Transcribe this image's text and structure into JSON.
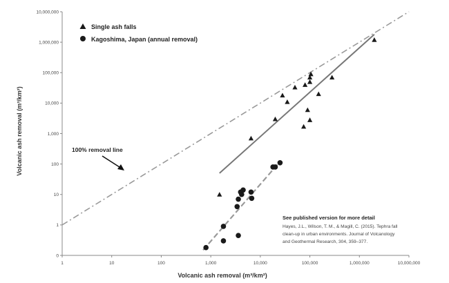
{
  "chart_data": {
    "type": "scatter",
    "title": "",
    "xlabel": "Volcanic ash removal (m³/km²)",
    "ylabel": "Volcanic ash removal (m³/km²)",
    "x_scale": "log",
    "y_scale": "log",
    "xlim": [
      1,
      10000000
    ],
    "ylim": [
      0.1,
      10000000
    ],
    "x_tick_values": [
      1,
      10,
      100,
      1000,
      10000,
      100000,
      1000000,
      10000000
    ],
    "x_tick_labels": [
      "1",
      "10",
      "100",
      "1,000",
      "10,000",
      "100,000",
      "1,000,000",
      "10,000,000"
    ],
    "y_tick_values": [
      0.1,
      1,
      10,
      100,
      1000,
      10000,
      100000,
      1000000,
      10000000
    ],
    "y_tick_labels": [
      "0",
      "1",
      "10",
      "100",
      "1,000",
      "10,000",
      "100,000",
      "1,000,000",
      "10,000,000"
    ],
    "grid": false,
    "legend_position": "top-left",
    "series": [
      {
        "name": "Single ash falls",
        "marker": "triangle",
        "color": "#1a1a1a",
        "points": [
          [
            1500,
            10
          ],
          [
            6500,
            700
          ],
          [
            20000,
            3000
          ],
          [
            28000,
            18000
          ],
          [
            35000,
            11000
          ],
          [
            50000,
            33000
          ],
          [
            75000,
            1700
          ],
          [
            80000,
            40000
          ],
          [
            90000,
            6000
          ],
          [
            100000,
            2800
          ],
          [
            100000,
            50000
          ],
          [
            100000,
            70000
          ],
          [
            105000,
            90000
          ],
          [
            150000,
            20000
          ],
          [
            280000,
            70000
          ],
          [
            2000000,
            1200000
          ]
        ]
      },
      {
        "name": "Kagoshima, Japan (annual removal)",
        "marker": "circle",
        "color": "#1a1a1a",
        "points": [
          [
            800,
            0.18
          ],
          [
            1800,
            0.9
          ],
          [
            1800,
            0.3
          ],
          [
            3400,
            4
          ],
          [
            3600,
            7
          ],
          [
            3600,
            0.45
          ],
          [
            4000,
            12
          ],
          [
            4200,
            10
          ],
          [
            4500,
            14
          ],
          [
            6500,
            12
          ],
          [
            6700,
            7.5
          ],
          [
            18000,
            80
          ],
          [
            20000,
            80
          ],
          [
            25000,
            110
          ]
        ]
      }
    ],
    "lines": [
      {
        "name": "100% removal line",
        "style": "dash-dot",
        "color": "#999999",
        "points": [
          [
            1,
            1
          ],
          [
            10000000,
            10000000
          ]
        ]
      },
      {
        "name": "Single ash falls trend",
        "style": "solid",
        "color": "#777777",
        "points": [
          [
            1500,
            50
          ],
          [
            2000000,
            1800000
          ]
        ]
      },
      {
        "name": "Kagoshima trend",
        "style": "dashed",
        "color": "#999999",
        "points": [
          [
            700,
            0.15
          ],
          [
            25000,
            120
          ]
        ]
      }
    ],
    "annotations": {
      "removal_line_label": "100% removal line",
      "citation_title": "See published version for more detail",
      "citation_lines": [
        "Hayes, J.L., Wilson, T. M., & Magill, C. (2015). Tephra fall",
        "clean-up in urban environments. Journal of Volcanology",
        "and Geothermal Research, 304, 359–377."
      ]
    }
  }
}
